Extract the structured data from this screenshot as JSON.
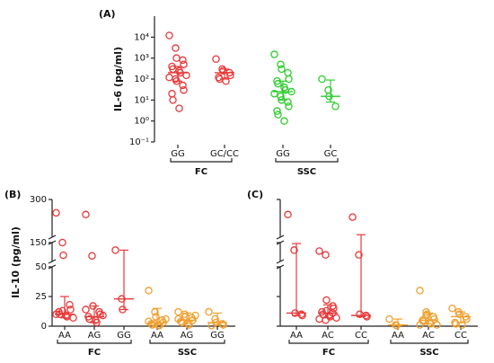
{
  "chart_data": [
    {
      "type": "strip",
      "panel_label": "(A)",
      "y_label": "IL-6 (pg/ml)",
      "log_scale": true,
      "ylim": [
        0.1,
        100000
      ],
      "yticks": [
        {
          "value": 0.1,
          "label": "10⁻¹"
        },
        {
          "value": 1,
          "label": "10⁰"
        },
        {
          "value": 10,
          "label": "10¹"
        },
        {
          "value": 100,
          "label": "10²"
        },
        {
          "value": 1000,
          "label": "10³"
        },
        {
          "value": 10000,
          "label": "10⁴"
        }
      ],
      "groups": [
        {
          "name": "FC",
          "categories": [
            {
              "name": "GG",
              "color": "#e8393a",
              "values": [
                12000,
                3000,
                1000,
                800,
                500,
                400,
                300,
                250,
                200,
                150,
                120,
                100,
                80,
                50,
                30,
                20,
                10,
                4
              ],
              "median": 200,
              "whisker": [
                80,
                400
              ]
            },
            {
              "name": "GC/CC",
              "color": "#e8393a",
              "values": [
                900,
                300,
                250,
                200,
                150,
                120,
                100,
                80
              ],
              "median": 200,
              "whisker": [
                100,
                300
              ]
            }
          ]
        },
        {
          "name": "SSC",
          "categories": [
            {
              "name": "GG",
              "color": "#2ecc2e",
              "values": [
                1500,
                500,
                300,
                200,
                100,
                80,
                60,
                40,
                30,
                25,
                20,
                15,
                10,
                8,
                5,
                3,
                2,
                1
              ],
              "median": 25,
              "whisker": [
                10,
                80
              ]
            },
            {
              "name": "GC",
              "color": "#2ecc2e",
              "values": [
                100,
                30,
                15,
                5
              ],
              "median": 15,
              "whisker": [
                8,
                90
              ]
            }
          ]
        }
      ]
    },
    {
      "type": "strip",
      "panel_label": "(B)",
      "y_label": "IL-10 (pg/ml)",
      "log_scale": false,
      "ylim": [
        0,
        300
      ],
      "ybreaks": [
        [
          0,
          50
        ],
        [
          50,
          150
        ],
        [
          150,
          300
        ]
      ],
      "yticks": [
        0,
        25,
        50,
        150,
        300
      ],
      "tick_labels": true,
      "groups": [
        {
          "name": "FC",
          "categories": [
            {
              "name": "AA",
              "color": "#e8393a",
              "values": [
                247,
                150,
                83,
                18,
                14,
                12,
                10,
                9,
                8,
                7,
                10,
                13
              ],
              "median": 10,
              "whisker": [
                7,
                25
              ]
            },
            {
              "name": "AG",
              "color": "#e8393a",
              "values": [
                240,
                80,
                17,
                12,
                10,
                8,
                6,
                5,
                3,
                9,
                14
              ],
              "median": 8,
              "whisker": [
                3,
                17
              ]
            },
            {
              "name": "GG",
              "color": "#e8393a",
              "values": [
                110,
                23,
                14
              ],
              "median": 23,
              "whisker": [
                14,
                110
              ]
            }
          ]
        },
        {
          "name": "SSC",
          "categories": [
            {
              "name": "AA",
              "color": "#f0a030",
              "values": [
                30,
                12,
                8,
                5,
                3,
                2,
                1,
                1,
                0.5,
                6,
                4,
                2
              ],
              "median": 3,
              "whisker": [
                1,
                15
              ]
            },
            {
              "name": "AG",
              "color": "#f0a030",
              "values": [
                12,
                10,
                8,
                7,
                5,
                4,
                3,
                2,
                1,
                9,
                6
              ],
              "median": 5,
              "whisker": [
                2,
                11
              ]
            },
            {
              "name": "GG",
              "color": "#f0a030",
              "values": [
                12,
                6,
                3,
                2,
                1,
                0.5
              ],
              "median": 3,
              "whisker": [
                1,
                11
              ]
            }
          ]
        }
      ]
    },
    {
      "type": "strip",
      "panel_label": "(C)",
      "log_scale": false,
      "ylim": [
        0,
        300
      ],
      "ybreaks": [
        [
          0,
          50
        ],
        [
          50,
          150
        ],
        [
          150,
          300
        ]
      ],
      "yticks": [
        0,
        25,
        50,
        150,
        300
      ],
      "tick_labels": false,
      "groups": [
        {
          "name": "FC",
          "categories": [
            {
              "name": "AA",
              "color": "#e8393a",
              "values": [
                240,
                110,
                11,
                10,
                9
              ],
              "median": 11,
              "whisker": [
                9,
                145
              ]
            },
            {
              "name": "AC",
              "color": "#e8393a",
              "values": [
                105,
                85,
                22,
                17,
                15,
                12,
                10,
                9,
                8,
                7,
                6,
                5,
                13,
                11
              ],
              "median": 11,
              "whisker": [
                7,
                18
              ]
            },
            {
              "name": "CC",
              "color": "#e8393a",
              "values": [
                230,
                85,
                10,
                9,
                8
              ],
              "median": 9,
              "whisker": [
                8,
                160
              ]
            }
          ]
        },
        {
          "name": "SSC",
          "categories": [
            {
              "name": "AA",
              "color": "#f0a030",
              "values": [
                6,
                1,
                0.5
              ],
              "median": 1,
              "whisker": [
                0.5,
                6
              ]
            },
            {
              "name": "AC",
              "color": "#f0a030",
              "values": [
                30,
                12,
                10,
                8,
                6,
                5,
                4,
                3,
                2,
                1,
                1,
                9
              ],
              "median": 5,
              "whisker": [
                2,
                11
              ]
            },
            {
              "name": "CC",
              "color": "#f0a030",
              "values": [
                15,
                12,
                10,
                8,
                6,
                3,
                2,
                1
              ],
              "median": 8,
              "whisker": [
                3,
                12
              ]
            }
          ]
        }
      ]
    }
  ]
}
